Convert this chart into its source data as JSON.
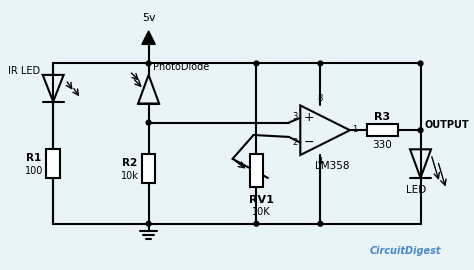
{
  "bg_color": "#e8f4f8",
  "line_color": "#000000",
  "watermark": "CircuitDigest",
  "supply_voltage": "5v",
  "r1_label": "R1",
  "r1_value": "100",
  "r2_label": "R2",
  "r2_value": "10k",
  "rv1_label": "RV1",
  "rv1_value": "10K",
  "r3_label": "R3",
  "r3_value": "330",
  "ir_led_label": "IR LED",
  "photodiode_label": "PhotoDiode",
  "opamp_label": "LM358",
  "led_label": "LED",
  "output_label": "OUTPUT",
  "pin_labels": [
    "8",
    "3",
    "2",
    "1",
    "4"
  ]
}
